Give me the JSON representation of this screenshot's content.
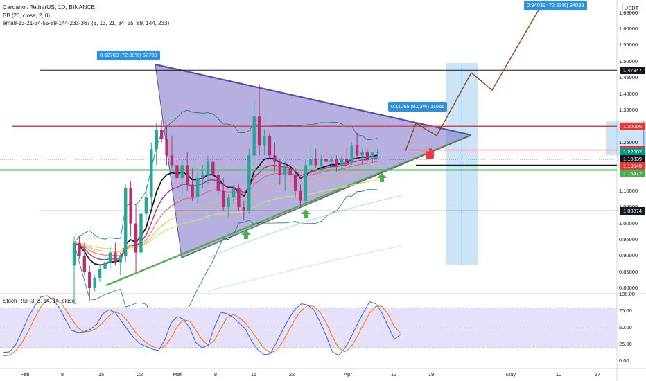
{
  "legend": {
    "title": "Cardano / TetherUS, 1D, BINANCE",
    "bb": "BB (20, close, 2, 0)",
    "ema": "ema8-13-21-34-55-89-144-233-367 (8, 13, 21, 34, 55, 89, 144, 233)",
    "stoch": "Stoch RSI (3, 3, 14, 14, close)"
  },
  "currency_label": "USDT",
  "price_ticks": [
    "1.65000",
    "1.60000",
    "1.55000",
    "1.50000",
    "1.45000",
    "1.40000",
    "1.35000",
    "1.30000",
    "1.25000",
    "1.20000",
    "1.15000",
    "1.10000",
    "1.05000",
    "1.00000",
    "0.95000",
    "0.90000",
    "0.85000",
    "0.80000"
  ],
  "rsi_ticks": [
    "100.00",
    "75.00",
    "50.00",
    "25.00",
    "0.00"
  ],
  "x_ticks": [
    "Feb",
    "8",
    "15",
    "22",
    "Mar",
    "8",
    "15",
    "22",
    "Apr",
    "12",
    "19",
    "May",
    "10",
    "17"
  ],
  "right_tags": [
    {
      "label": "1.47347",
      "value": 1.47347,
      "bg": "#131722"
    },
    {
      "label": "1.30006",
      "value": 1.30006,
      "bg": "#e53935"
    },
    {
      "label": "1.22680",
      "value": 1.2268,
      "bg": "#e53935"
    },
    {
      "label": "1.22007",
      "value": 1.22007,
      "bg": "#089981"
    },
    {
      "label": "12:03:23",
      "value": 1.2058,
      "bg": "#089981"
    },
    {
      "label": "1.19839",
      "value": 1.19839,
      "bg": "#131722"
    },
    {
      "label": "1.19549",
      "value": 1.17669,
      "bg": "#e53935"
    },
    {
      "label": "1.16472",
      "value": 1.15479,
      "bg": "#4caf50"
    },
    {
      "label": "1.03874",
      "value": 1.03874,
      "bg": "#131722"
    }
  ],
  "callouts": [
    {
      "text": "0.62700 (72.38%) 62700"
    },
    {
      "text": "0.11065 (9.03%) 11065"
    },
    {
      "text": "0.94039 (72.33%) 94039"
    }
  ],
  "colors": {
    "bull": "#26a69a",
    "bear": "#b5306d",
    "triangle_fill": "#7a70c9",
    "triangle_edge": "#5a4fa8",
    "resistance": "#f23645",
    "support": "#4caf50",
    "projection": "#8b4513",
    "arrow": "#4caf50",
    "measure": "#8fc3ec",
    "rsi_k": "#2962ff",
    "rsi_d": "#ff6d00",
    "rsi_band": "#e6e0f8"
  },
  "chart_data": {
    "type": "candlestick",
    "symbol": "Cardano / TetherUS",
    "interval": "1D",
    "exchange": "BINANCE",
    "ylim": [
      0.785,
      1.69
    ],
    "horizontal_levels": [
      1.47347,
      1.30006,
      1.2268,
      1.22007,
      1.19839,
      1.16472,
      1.03874
    ],
    "candles": [
      [
        0.87,
        0.96,
        0.75,
        0.94
      ],
      [
        0.94,
        0.96,
        0.89,
        0.9
      ],
      [
        0.9,
        0.94,
        0.84,
        0.85
      ],
      [
        0.85,
        0.87,
        0.76,
        0.8
      ],
      [
        0.8,
        0.84,
        0.79,
        0.83
      ],
      [
        0.83,
        0.87,
        0.82,
        0.86
      ],
      [
        0.86,
        0.89,
        0.84,
        0.88
      ],
      [
        0.88,
        0.93,
        0.86,
        0.91
      ],
      [
        0.91,
        0.94,
        0.87,
        0.88
      ],
      [
        0.88,
        0.91,
        0.84,
        0.9
      ],
      [
        0.9,
        1.12,
        0.88,
        1.11
      ],
      [
        1.11,
        1.13,
        0.96,
        1.0
      ],
      [
        1.0,
        1.06,
        0.85,
        0.91
      ],
      [
        0.91,
        1.04,
        0.89,
        1.03
      ],
      [
        1.03,
        1.12,
        1.0,
        1.08
      ],
      [
        1.08,
        1.25,
        1.05,
        1.23
      ],
      [
        1.23,
        1.31,
        1.18,
        1.29
      ],
      [
        1.29,
        1.32,
        1.25,
        1.26
      ],
      [
        1.26,
        1.3,
        1.18,
        1.21
      ],
      [
        1.21,
        1.27,
        1.17,
        1.18
      ],
      [
        1.18,
        1.2,
        1.12,
        1.14
      ],
      [
        1.14,
        1.19,
        1.09,
        1.18
      ],
      [
        1.18,
        1.22,
        1.1,
        1.12
      ],
      [
        1.12,
        1.17,
        1.07,
        1.08
      ],
      [
        1.08,
        1.16,
        1.06,
        1.14
      ],
      [
        1.14,
        1.18,
        1.11,
        1.15
      ],
      [
        1.15,
        1.21,
        1.12,
        1.19
      ],
      [
        1.19,
        1.21,
        1.13,
        1.15
      ],
      [
        1.15,
        1.16,
        1.09,
        1.1
      ],
      [
        1.1,
        1.14,
        1.04,
        1.05
      ],
      [
        1.05,
        1.09,
        1.02,
        1.08
      ],
      [
        1.08,
        1.12,
        1.06,
        1.11
      ],
      [
        1.11,
        1.12,
        1.04,
        1.05
      ],
      [
        1.05,
        1.07,
        1.01,
        1.04
      ],
      [
        1.04,
        1.23,
        1.03,
        1.21
      ],
      [
        1.21,
        1.38,
        1.18,
        1.33
      ],
      [
        1.33,
        1.43,
        1.21,
        1.24
      ],
      [
        1.24,
        1.29,
        1.21,
        1.27
      ],
      [
        1.27,
        1.28,
        1.2,
        1.21
      ],
      [
        1.21,
        1.25,
        1.16,
        1.19
      ],
      [
        1.19,
        1.2,
        1.12,
        1.15
      ],
      [
        1.15,
        1.19,
        1.1,
        1.17
      ],
      [
        1.17,
        1.19,
        1.12,
        1.15
      ],
      [
        1.15,
        1.17,
        1.08,
        1.1
      ],
      [
        1.1,
        1.12,
        1.05,
        1.07
      ],
      [
        1.07,
        1.2,
        1.06,
        1.18
      ],
      [
        1.18,
        1.24,
        1.15,
        1.2
      ],
      [
        1.2,
        1.23,
        1.17,
        1.18
      ],
      [
        1.18,
        1.21,
        1.16,
        1.2
      ],
      [
        1.2,
        1.22,
        1.17,
        1.19
      ],
      [
        1.19,
        1.21,
        1.17,
        1.2
      ],
      [
        1.2,
        1.21,
        1.16,
        1.18
      ],
      [
        1.18,
        1.21,
        1.17,
        1.2
      ],
      [
        1.2,
        1.23,
        1.17,
        1.19
      ],
      [
        1.19,
        1.25,
        1.18,
        1.24
      ],
      [
        1.24,
        1.28,
        1.2,
        1.21
      ],
      [
        1.21,
        1.23,
        1.18,
        1.22
      ],
      [
        1.22,
        1.23,
        1.19,
        1.2
      ],
      [
        1.2,
        1.22,
        1.19,
        1.22
      ],
      [
        1.22,
        1.23,
        1.2,
        1.22
      ]
    ],
    "triangle": [
      [
        0.892,
        1.49
      ],
      [
        0.874,
        0.9
      ],
      [
        1.003,
        1.265
      ]
    ],
    "projection_path": [
      [
        1.003,
        1.265
      ],
      [
        1.093,
        1.335
      ],
      [
        1.165,
        1.45
      ],
      [
        1.205,
        1.395
      ],
      [
        1.285,
        1.59
      ],
      [
        1.39,
        1.76
      ]
    ],
    "measure_boxes": [
      {
        "x": [
          0.69,
          0.74
        ],
        "y": [
          0.872,
          1.495
        ]
      },
      {
        "x": [
          0.938,
          1.055
        ],
        "y": [
          1.21,
          1.315
        ]
      },
      {
        "x": [
          1.242,
          1.317
        ],
        "y": [
          1.303,
          1.69
        ]
      }
    ],
    "arrows": [
      0.93,
      1.143,
      1.336
    ],
    "stoch_rsi": {
      "ylim": [
        -10,
        100
      ],
      "bands": [
        20,
        80
      ],
      "k": [
        13,
        14,
        25,
        45,
        66,
        82,
        96,
        98,
        92,
        80,
        62,
        46,
        43,
        44,
        48,
        55,
        71,
        77,
        73,
        60,
        47,
        35,
        26,
        22,
        18,
        16,
        32,
        57,
        67,
        63,
        50,
        28,
        20,
        24,
        51,
        73,
        71,
        66,
        57,
        48,
        30,
        17,
        10,
        11,
        28,
        47,
        64,
        78,
        86,
        84,
        77,
        59,
        38,
        14,
        9,
        19,
        36,
        55,
        73,
        89,
        86,
        72,
        52,
        33,
        40
      ],
      "d": [
        8,
        9,
        16,
        28,
        45,
        64,
        81,
        92,
        95,
        90,
        78,
        63,
        50,
        44,
        45,
        49,
        58,
        68,
        74,
        70,
        60,
        47,
        36,
        28,
        22,
        19,
        22,
        35,
        52,
        62,
        60,
        47,
        32,
        24,
        31,
        49,
        65,
        70,
        65,
        57,
        45,
        32,
        19,
        13,
        16,
        29,
        46,
        63,
        76,
        83,
        82,
        73,
        58,
        37,
        20,
        14,
        21,
        37,
        55,
        72,
        82,
        82,
        70,
        52,
        42
      ]
    }
  }
}
